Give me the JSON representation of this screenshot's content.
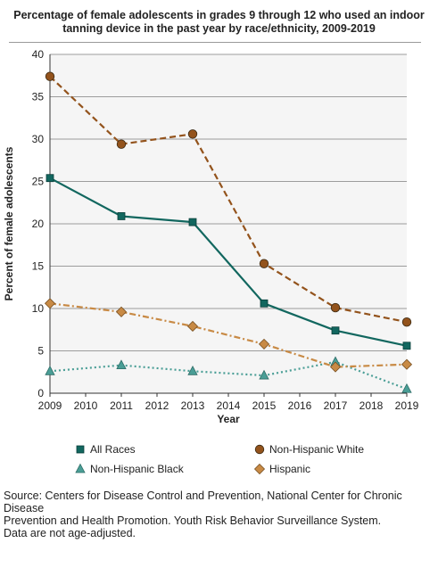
{
  "chart_data": {
    "type": "line",
    "title": "Percentage of female adolescents in grades 9 through 12 who used an indoor tanning device in the past year by race/ethnicity, 2009-2019",
    "xlabel": "Year",
    "ylabel": "Percent of female adolescents",
    "x": [
      2009,
      2011,
      2013,
      2015,
      2017,
      2019
    ],
    "xticks": [
      2009,
      2010,
      2011,
      2012,
      2013,
      2014,
      2015,
      2016,
      2017,
      2018,
      2019
    ],
    "xlim": [
      2009,
      2019
    ],
    "ylim": [
      0,
      40
    ],
    "yticks": [
      0,
      5,
      10,
      15,
      20,
      25,
      30,
      35,
      40
    ],
    "grid": "horizontal",
    "legend": "bottom",
    "series": [
      {
        "name": "All Races",
        "values": [
          25.4,
          20.9,
          20.2,
          10.6,
          7.4,
          5.6
        ],
        "color": "#12675f",
        "marker": "square",
        "dash": "solid"
      },
      {
        "name": "Non-Hispanic White",
        "values": [
          37.4,
          29.4,
          30.6,
          15.3,
          10.1,
          8.4
        ],
        "color": "#93531c",
        "marker": "circle",
        "dash": "dashed"
      },
      {
        "name": "Non-Hispanic Black",
        "values": [
          2.6,
          3.3,
          2.6,
          2.1,
          3.7,
          0.5
        ],
        "color": "#4a9e96",
        "marker": "triangle",
        "dash": "dotted"
      },
      {
        "name": "Hispanic",
        "values": [
          10.6,
          9.6,
          7.9,
          5.8,
          3.1,
          3.4
        ],
        "color": "#c88a45",
        "marker": "diamond",
        "dash": "dashdot"
      }
    ]
  },
  "source_lines": [
    "Source: Centers for Disease Control and Prevention, National Center for Chronic Disease",
    "Prevention and Health Promotion. Youth Risk Behavior Surveillance System.",
    "Data are not age-adjusted."
  ]
}
